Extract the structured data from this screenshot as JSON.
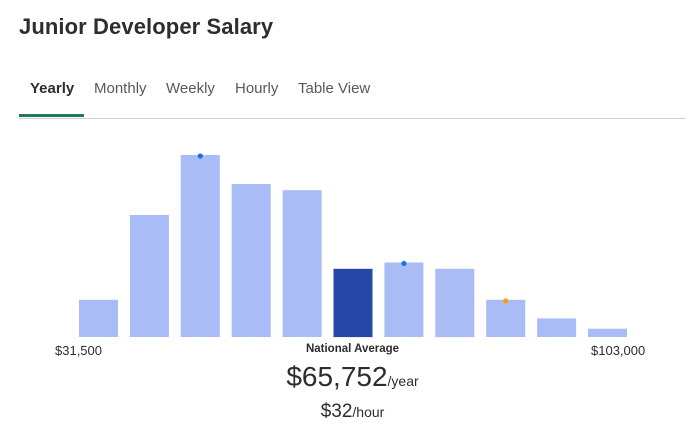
{
  "page": {
    "title": "Junior Developer Salary"
  },
  "tabs": [
    {
      "label": "Yearly",
      "active": true
    },
    {
      "label": "Monthly",
      "active": false
    },
    {
      "label": "Weekly",
      "active": false
    },
    {
      "label": "Hourly",
      "active": false
    },
    {
      "label": "Table View",
      "active": false
    }
  ],
  "summary": {
    "min_label": "$31,500",
    "max_label": "$103,000",
    "average_caption": "National Average",
    "average_value": "$65,752",
    "average_unit": "/year",
    "hourly_value": "$32",
    "hourly_unit": "/hour"
  },
  "colors": {
    "bar": "#a9bcf5",
    "highlight_bar": "#2647a6",
    "blue_marker": "#1a73e8",
    "orange_marker": "#f4a000",
    "active_tab_underline": "#1f7a5a"
  },
  "chart_data": {
    "type": "bar",
    "title": "",
    "xlabel": "",
    "ylabel": "",
    "x_range": [
      31500,
      103000
    ],
    "values": [
      18,
      59,
      88,
      74,
      71,
      33,
      36,
      33,
      18,
      9,
      4
    ],
    "highlight_index": 5,
    "markers": [
      {
        "bar_index": 2,
        "color": "blue"
      },
      {
        "bar_index": 6,
        "color": "blue"
      },
      {
        "bar_index": 8,
        "color": "orange"
      }
    ],
    "ylim": [
      0,
      88
    ],
    "grid": false,
    "legend": "none"
  }
}
